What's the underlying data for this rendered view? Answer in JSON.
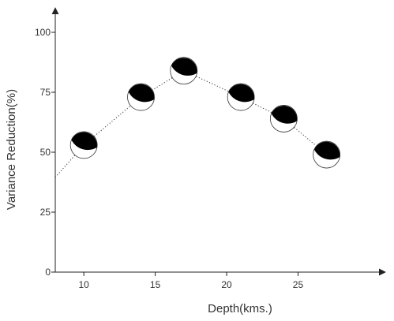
{
  "chart_data": {
    "type": "scatter",
    "title": "",
    "xlabel": "Depth(kms.)",
    "ylabel": "Variance Reduction(%)",
    "xlim": [
      8,
      31
    ],
    "ylim": [
      0,
      100
    ],
    "xticks": [
      10,
      15,
      20,
      25
    ],
    "yticks": [
      0,
      25,
      50,
      75,
      100
    ],
    "grid": false,
    "legend": "none",
    "marker": "focal-mechanism-beachball",
    "colors": {
      "axis": "#222222",
      "text": "#333333",
      "marker_fill": "#000000",
      "marker_rim": "#333333"
    },
    "trend_line": {
      "style": "dotted",
      "x": [
        8,
        10,
        14,
        17,
        21,
        24,
        27
      ],
      "y": [
        39.5,
        53,
        73,
        84,
        73,
        64,
        49
      ]
    },
    "series": [
      {
        "x": [
          10,
          14,
          17,
          21,
          24,
          27
        ],
        "y": [
          53,
          73,
          84,
          73,
          64,
          49
        ]
      }
    ]
  }
}
